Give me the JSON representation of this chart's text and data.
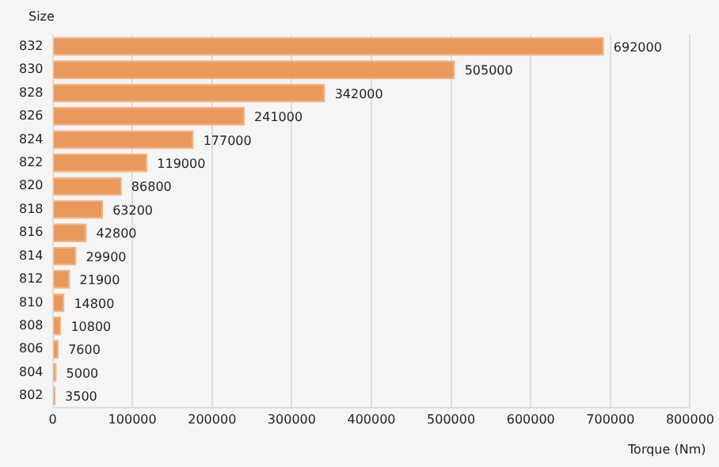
{
  "chart_data": {
    "type": "bar",
    "orientation": "horizontal",
    "xlabel": "Torque (Nm)",
    "ylabel": "Size",
    "categories": [
      "832",
      "830",
      "828",
      "826",
      "824",
      "822",
      "820",
      "818",
      "816",
      "814",
      "812",
      "810",
      "808",
      "806",
      "804",
      "802"
    ],
    "values": [
      692000,
      505000,
      342000,
      241000,
      177000,
      119000,
      86800,
      63200,
      42800,
      29900,
      21900,
      14800,
      10800,
      7600,
      5000,
      3500
    ],
    "color": "#e8995b",
    "xlim": [
      0,
      800000
    ],
    "xticks": [
      0,
      100000,
      200000,
      300000,
      400000,
      500000,
      600000,
      700000,
      800000
    ],
    "grid": "x",
    "data_labels": true,
    "legend": false
  }
}
